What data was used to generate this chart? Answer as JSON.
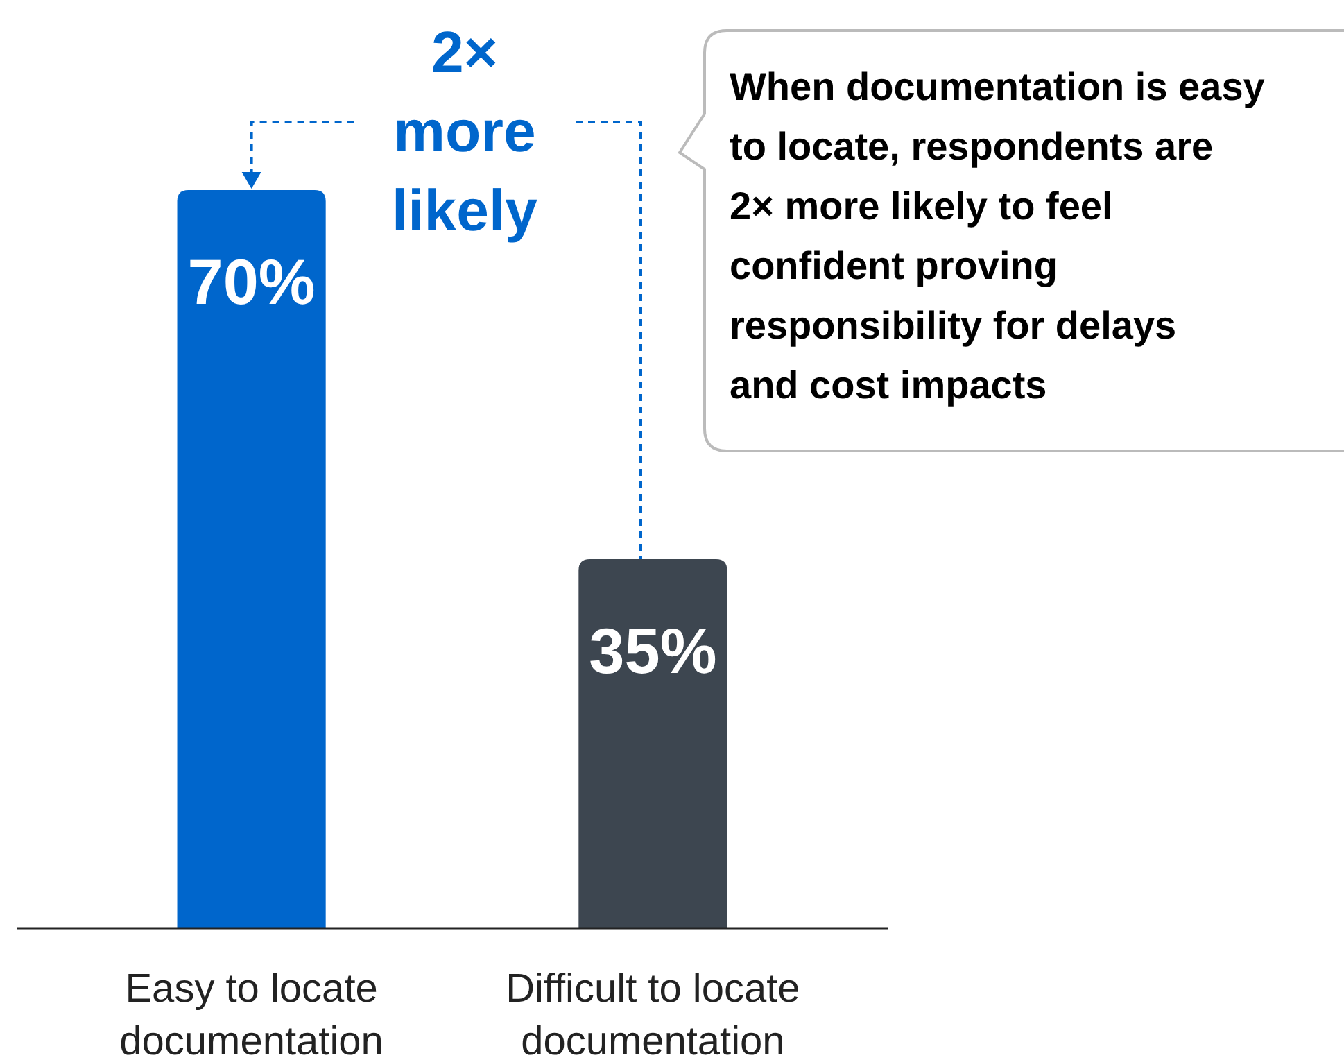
{
  "chart_data": {
    "type": "bar",
    "categories": [
      "Easy to locate documentation",
      "Difficult to locate documentation"
    ],
    "values": [
      70,
      35
    ],
    "colors": [
      "#0066cc",
      "#3d4650"
    ],
    "value_labels": [
      "70%",
      "35%"
    ],
    "annotations": [
      "2× more likely",
      "When documentation is easy to locate, respondents are 2× more likely to feel confident proving responsibility for delays and cost impacts"
    ]
  }
}
